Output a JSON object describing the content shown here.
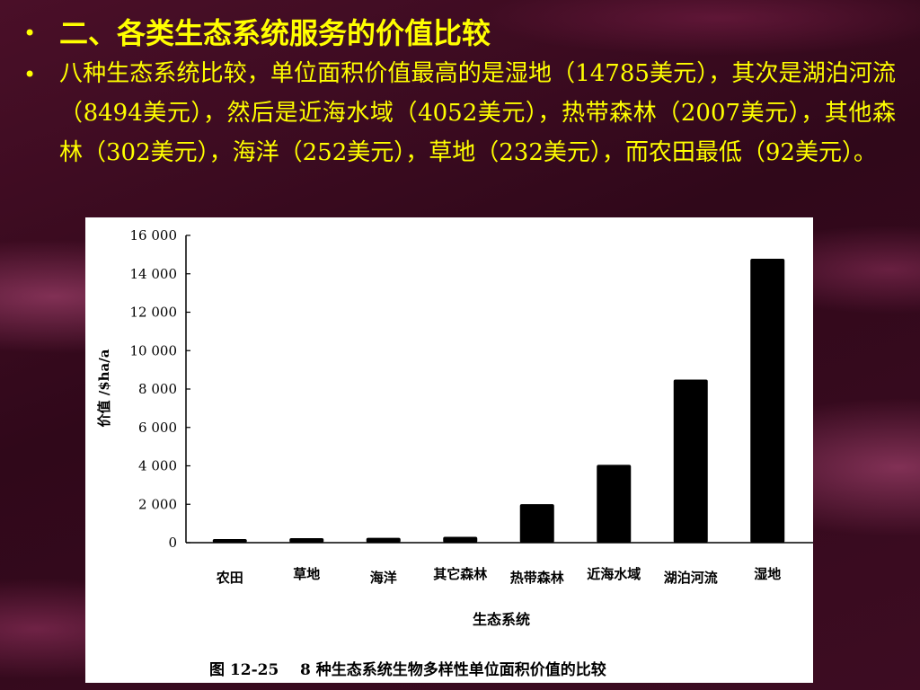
{
  "bullets": [
    {
      "text": "二、各类生态系统服务的价值比较"
    },
    {
      "text": "八种生态系统比较，单位面积价值最高的是湿地（14785美元），其次是湖泊河流（8494美元），然后是近海水域（4052美元），热带森林（2007美元），其他森林（302美元），海洋（252美元），草地（232美元），而农田最低（92美元）。"
    }
  ],
  "bullet_glyph": "•",
  "chart_data": {
    "type": "bar",
    "categories": [
      "农田",
      "草地",
      "海洋",
      "其它森林",
      "热带森林",
      "近海水域",
      "湖泊河流",
      "湿地"
    ],
    "values": [
      92,
      232,
      252,
      302,
      2007,
      4052,
      8494,
      14785
    ],
    "ylim": [
      0,
      16000
    ],
    "yticks": [
      0,
      2000,
      4000,
      6000,
      8000,
      10000,
      12000,
      14000,
      16000
    ],
    "ytick_labels": [
      "0",
      "2 000",
      "4 000",
      "6 000",
      "8 000",
      "10 000",
      "12 000",
      "14 000",
      "16 000"
    ],
    "ylabel": "价值 /$ha/a",
    "xlabel": "生态系统",
    "caption": "图 12-25    8 种生态系统生物多样性单位面积价值的比较",
    "bar_color": "#000000",
    "grid": false
  }
}
